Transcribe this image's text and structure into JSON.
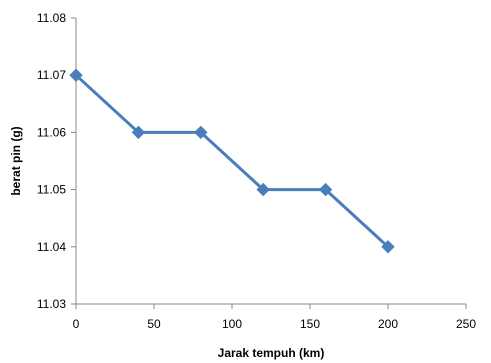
{
  "chart_data": {
    "type": "line",
    "title": "",
    "xlabel": "Jarak tempuh (km)",
    "ylabel": "berat pin (g)",
    "xlim": [
      0,
      250
    ],
    "ylim": [
      11.03,
      11.08
    ],
    "x_ticks": [
      "0",
      "50",
      "100",
      "150",
      "200",
      "250"
    ],
    "y_ticks": [
      "11.03",
      "11.04",
      "11.05",
      "11.06",
      "11.07",
      "11.08"
    ],
    "grid": false,
    "legend": "none",
    "series": [
      {
        "color": "#4a7ebb",
        "marker": "diamond",
        "points": [
          {
            "x": 0,
            "y": 11.07
          },
          {
            "x": 40,
            "y": 11.06
          },
          {
            "x": 80,
            "y": 11.06
          },
          {
            "x": 120,
            "y": 11.05
          },
          {
            "x": 160,
            "y": 11.05
          },
          {
            "x": 200,
            "y": 11.04
          }
        ]
      }
    ]
  }
}
